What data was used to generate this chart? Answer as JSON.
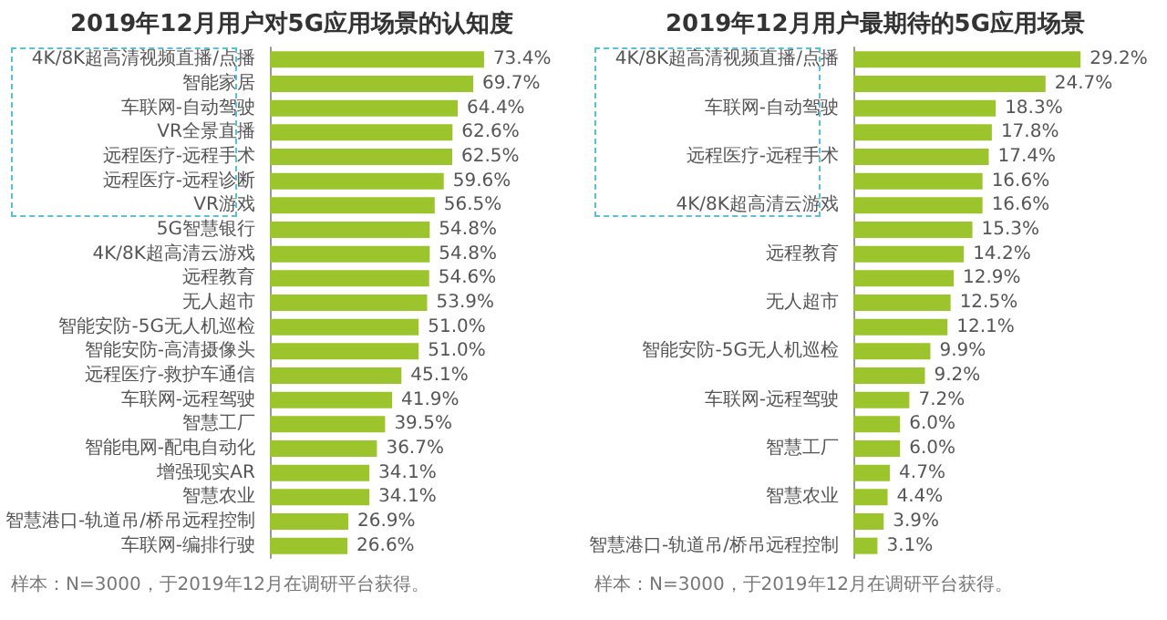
{
  "chart_data": [
    {
      "type": "bar",
      "orientation": "horizontal",
      "title": "2019年12月用户对5G应用场景的认知度",
      "color": "#9cc42c",
      "categories": [
        "4K/8K超高清视频直播/点播",
        "智能家居",
        "车联网-自动驾驶",
        "VR全景直播",
        "远程医疗-远程手术",
        "远程医疗-远程诊断",
        "VR游戏",
        "5G智慧银行",
        "4K/8K超高清云游戏",
        "远程教育",
        "无人超市",
        "智能安防-5G无人机巡检",
        "智能安防-高清摄像头",
        "远程医疗-救护车通信",
        "车联网-远程驾驶",
        "智慧工厂",
        "智能电网-配电自动化",
        "增强现实AR",
        "智慧农业",
        "智慧港口-轨道吊/桥吊远程控制",
        "车联网-编排行驶"
      ],
      "values": [
        73.4,
        69.7,
        64.4,
        62.6,
        62.5,
        59.6,
        56.5,
        54.8,
        54.8,
        54.6,
        53.9,
        51.0,
        51.0,
        45.1,
        41.9,
        39.5,
        36.7,
        34.1,
        34.1,
        26.9,
        26.6
      ],
      "value_labels": [
        "73.4%",
        "69.7%",
        "64.4%",
        "62.6%",
        "62.5%",
        "59.6%",
        "56.5%",
        "54.8%",
        "54.8%",
        "54.6%",
        "53.9%",
        "51.0%",
        "51.0%",
        "45.1%",
        "41.9%",
        "39.5%",
        "36.7%",
        "34.1%",
        "34.1%",
        "26.9%",
        "26.6%"
      ],
      "annotations": [
        "样本：N=3000，于2019年12月在调研平台获得。"
      ]
    },
    {
      "type": "bar",
      "orientation": "horizontal",
      "title": "2019年12月用户最期待的5G应用场景",
      "color": "#9cc42c",
      "categories": [
        "4K/8K超高清视频直播/点播",
        null,
        "车联网-自动驾驶",
        null,
        "远程医疗-远程手术",
        null,
        "4K/8K超高清云游戏",
        null,
        "远程教育",
        null,
        "无人超市",
        null,
        "智能安防-5G无人机巡检",
        null,
        "车联网-远程驾驶",
        null,
        "智慧工厂",
        null,
        "智慧农业",
        null,
        "智慧港口-轨道吊/桥吊远程控制"
      ],
      "values": [
        29.2,
        24.7,
        18.3,
        17.8,
        17.4,
        16.6,
        16.6,
        15.3,
        14.2,
        12.9,
        12.5,
        12.1,
        9.9,
        9.2,
        7.2,
        6.0,
        6.0,
        4.7,
        4.4,
        3.9,
        3.1
      ],
      "value_labels": [
        "29.2%",
        "24.7%",
        "18.3%",
        "17.8%",
        "17.4%",
        "16.6%",
        "16.6%",
        "15.3%",
        "14.2%",
        "12.9%",
        "12.5%",
        "12.1%",
        "9.9%",
        "9.2%",
        "7.2%",
        "6.0%",
        "6.0%",
        "4.7%",
        "4.4%",
        "3.9%",
        "3.1%"
      ],
      "annotations": [
        "样本：N=3000，于2019年12月在调研平台获得。"
      ]
    }
  ]
}
